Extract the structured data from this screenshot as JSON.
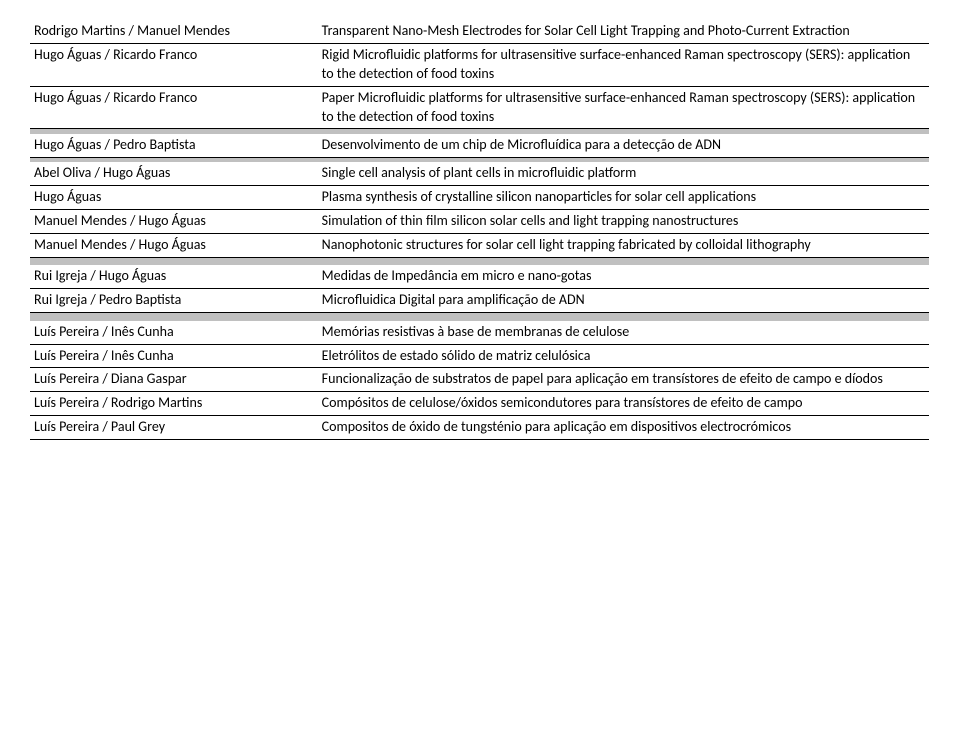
{
  "groups": [
    {
      "rows": [
        {
          "advisors": "Rodrigo Martins / Manuel Mendes",
          "topic": "Transparent Nano-Mesh Electrodes for Solar Cell Light Trapping and Photo-Current Extraction"
        },
        {
          "advisors": "Hugo Águas / Ricardo Franco",
          "topic": "Rigid Microfluidic platforms for ultrasensitive surface-enhanced Raman spectroscopy (SERS): application to the detection of food toxins"
        },
        {
          "advisors": "Hugo Águas / Ricardo Franco",
          "topic": "Paper Microfluidic platforms for ultrasensitive surface-enhanced Raman spectroscopy (SERS): application to the detection of food toxins"
        }
      ]
    },
    {
      "rows": [
        {
          "advisors": "Hugo Águas / Pedro Baptista",
          "topic": "Desenvolvimento de um chip de Microfluídica para a detecção de ADN"
        }
      ]
    },
    {
      "rows": [
        {
          "advisors": "Abel Oliva / Hugo Águas",
          "topic": "Single cell analysis of plant cells in microfluidic platform"
        },
        {
          "advisors": "Hugo Águas",
          "topic": "Plasma synthesis of crystalline silicon nanoparticles for solar cell applications"
        },
        {
          "advisors": "Manuel Mendes / Hugo Águas",
          "topic": " Simulation of thin film silicon solar cells and light trapping nanostructures"
        },
        {
          "advisors": "Manuel Mendes / Hugo Águas",
          "topic": "Nanophotonic structures for solar cell light trapping fabricated by colloidal lithography"
        }
      ]
    },
    {
      "rows": [
        {
          "advisors": "Rui Igreja / Hugo Águas",
          "topic": "Medidas de Impedância em micro e nano-gotas"
        },
        {
          "advisors": "Rui Igreja / Pedro Baptista",
          "topic": "Microfluidica Digital para amplificação de ADN"
        }
      ]
    },
    {
      "rows": [
        {
          "advisors": "Luís Pereira / Inês Cunha",
          "topic": "Memórias resistivas à base de membranas de celulose"
        },
        {
          "advisors": "Luís Pereira / Inês Cunha",
          "topic": "Eletrólitos de estado sólido de matriz celulósica"
        },
        {
          "advisors": "Luís Pereira / Diana Gaspar",
          "topic": "Funcionalização de substratos de papel para aplicação em transístores de efeito de campo e díodos"
        },
        {
          "advisors": "Luís Pereira / Rodrigo Martins",
          "topic": "Compósitos de celulose/óxidos semicondutores para transístores de efeito de campo"
        },
        {
          "advisors": "Luís Pereira / Paul Grey",
          "topic": "Compositos de óxido de tungsténio para aplicação em dispositivos electrocrómicos"
        }
      ]
    }
  ]
}
